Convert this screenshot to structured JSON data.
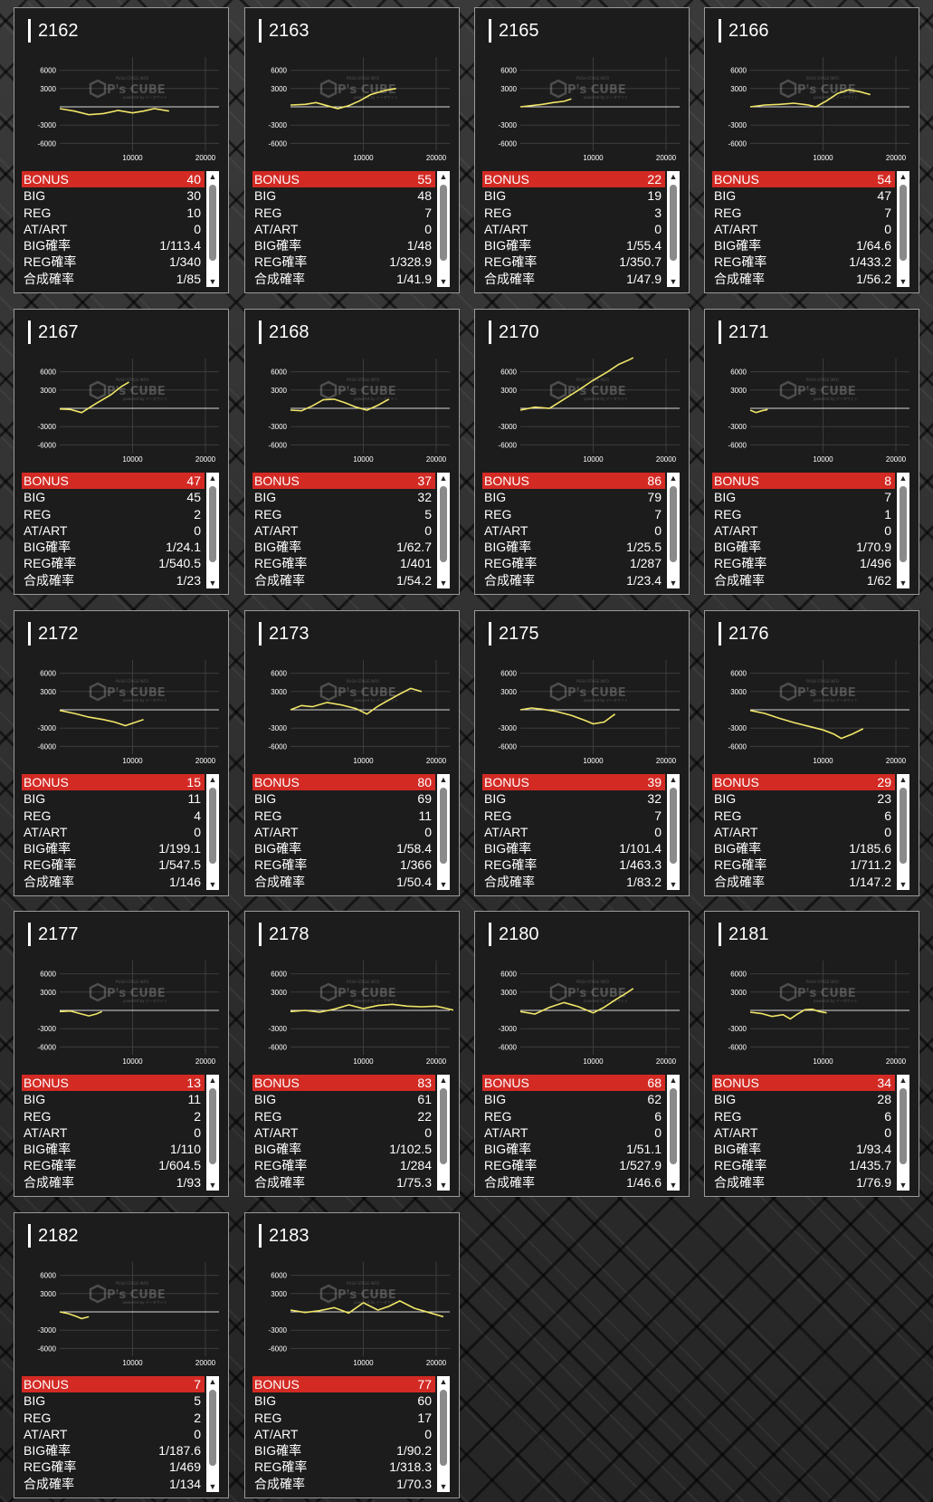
{
  "watermark": {
    "small": "PUSH STAGE INFO",
    "brand": "P's CUBE",
    "sub": "powered by データサイト"
  },
  "axis": {
    "y_ticks": [
      "6000",
      "3000",
      "-3000",
      "-6000"
    ],
    "x_ticks": [
      "10000",
      "20000"
    ]
  },
  "colors": {
    "bonus_bar": "#d32a24",
    "line": "#f0e668",
    "panel": "#1c1c1c"
  },
  "icons": {
    "scroll_up": "▲",
    "scroll_down": "▼"
  },
  "machines": [
    {
      "id": "2162",
      "bonus": "40",
      "big": "30",
      "reg": "10",
      "atart": "0",
      "big_rate": "1/113.4",
      "reg_rate": "1/340",
      "total_rate": "1/85",
      "series": [
        [
          0,
          -300
        ],
        [
          2000,
          -700
        ],
        [
          4000,
          -1300
        ],
        [
          6000,
          -1100
        ],
        [
          8000,
          -600
        ],
        [
          10000,
          -1000
        ],
        [
          11500,
          -700
        ],
        [
          13000,
          -300
        ],
        [
          15000,
          -700
        ]
      ]
    },
    {
      "id": "2163",
      "bonus": "55",
      "big": "48",
      "reg": "7",
      "atart": "0",
      "big_rate": "1/48",
      "reg_rate": "1/328.9",
      "total_rate": "1/41.9",
      "series": [
        [
          0,
          300
        ],
        [
          2000,
          400
        ],
        [
          3500,
          700
        ],
        [
          5000,
          200
        ],
        [
          6500,
          -300
        ],
        [
          8000,
          200
        ],
        [
          9500,
          1000
        ],
        [
          11000,
          2000
        ],
        [
          13000,
          2700
        ],
        [
          14500,
          3000
        ]
      ]
    },
    {
      "id": "2165",
      "bonus": "22",
      "big": "19",
      "reg": "3",
      "atart": "0",
      "big_rate": "1/55.4",
      "reg_rate": "1/350.7",
      "total_rate": "1/47.9",
      "series": [
        [
          0,
          0
        ],
        [
          1500,
          200
        ],
        [
          3000,
          400
        ],
        [
          4500,
          700
        ],
        [
          6000,
          900
        ],
        [
          7000,
          1300
        ]
      ]
    },
    {
      "id": "2166",
      "bonus": "54",
      "big": "47",
      "reg": "7",
      "atart": "0",
      "big_rate": "1/64.6",
      "reg_rate": "1/433.2",
      "total_rate": "1/56.2",
      "series": [
        [
          0,
          0
        ],
        [
          2000,
          300
        ],
        [
          4000,
          400
        ],
        [
          6000,
          600
        ],
        [
          8000,
          300
        ],
        [
          9000,
          0
        ],
        [
          10500,
          1000
        ],
        [
          12000,
          2200
        ],
        [
          13500,
          2800
        ],
        [
          15000,
          2500
        ],
        [
          16500,
          2000
        ]
      ]
    },
    {
      "id": "2167",
      "bonus": "47",
      "big": "45",
      "reg": "2",
      "atart": "0",
      "big_rate": "1/24.1",
      "reg_rate": "1/540.5",
      "total_rate": "1/23",
      "series": [
        [
          0,
          -100
        ],
        [
          1500,
          -200
        ],
        [
          3000,
          -700
        ],
        [
          5000,
          800
        ],
        [
          7000,
          2200
        ],
        [
          8500,
          3600
        ],
        [
          9500,
          4300
        ]
      ]
    },
    {
      "id": "2168",
      "bonus": "37",
      "big": "32",
      "reg": "5",
      "atart": "0",
      "big_rate": "1/62.7",
      "reg_rate": "1/401",
      "total_rate": "1/54.2",
      "series": [
        [
          0,
          -300
        ],
        [
          1500,
          -400
        ],
        [
          3000,
          400
        ],
        [
          4500,
          1400
        ],
        [
          6000,
          1500
        ],
        [
          7500,
          900
        ],
        [
          9000,
          200
        ],
        [
          10500,
          -300
        ],
        [
          12000,
          500
        ],
        [
          13500,
          1500
        ]
      ]
    },
    {
      "id": "2170",
      "bonus": "86",
      "big": "79",
      "reg": "7",
      "atart": "0",
      "big_rate": "1/25.5",
      "reg_rate": "1/287",
      "total_rate": "1/23.4",
      "series": [
        [
          0,
          -300
        ],
        [
          2000,
          200
        ],
        [
          4000,
          0
        ],
        [
          6000,
          1500
        ],
        [
          8000,
          3000
        ],
        [
          10000,
          4600
        ],
        [
          12000,
          6000
        ],
        [
          13500,
          7200
        ],
        [
          15000,
          8000
        ],
        [
          15500,
          8300
        ]
      ]
    },
    {
      "id": "2171",
      "bonus": "8",
      "big": "7",
      "reg": "1",
      "atart": "0",
      "big_rate": "1/70.9",
      "reg_rate": "1/496",
      "total_rate": "1/62",
      "series": [
        [
          0,
          -300
        ],
        [
          800,
          -700
        ],
        [
          1600,
          -400
        ],
        [
          2400,
          -200
        ]
      ]
    },
    {
      "id": "2172",
      "bonus": "15",
      "big": "11",
      "reg": "4",
      "atart": "0",
      "big_rate": "1/199.1",
      "reg_rate": "1/547.5",
      "total_rate": "1/146",
      "series": [
        [
          0,
          -100
        ],
        [
          2000,
          -600
        ],
        [
          4000,
          -1200
        ],
        [
          6000,
          -1600
        ],
        [
          7500,
          -2000
        ],
        [
          9000,
          -2600
        ],
        [
          10500,
          -2000
        ],
        [
          11500,
          -1600
        ]
      ]
    },
    {
      "id": "2173",
      "bonus": "80",
      "big": "69",
      "reg": "11",
      "atart": "0",
      "big_rate": "1/58.4",
      "reg_rate": "1/366",
      "total_rate": "1/50.4",
      "series": [
        [
          0,
          0
        ],
        [
          1500,
          700
        ],
        [
          3000,
          500
        ],
        [
          5000,
          1200
        ],
        [
          7000,
          800
        ],
        [
          9000,
          200
        ],
        [
          10500,
          -700
        ],
        [
          12000,
          600
        ],
        [
          13500,
          1600
        ],
        [
          15000,
          2600
        ],
        [
          16500,
          3500
        ],
        [
          18000,
          3000
        ]
      ]
    },
    {
      "id": "2175",
      "bonus": "39",
      "big": "32",
      "reg": "7",
      "atart": "0",
      "big_rate": "1/101.4",
      "reg_rate": "1/463.3",
      "total_rate": "1/83.2",
      "series": [
        [
          0,
          0
        ],
        [
          1500,
          300
        ],
        [
          3000,
          100
        ],
        [
          5000,
          -300
        ],
        [
          7000,
          -900
        ],
        [
          9000,
          -1800
        ],
        [
          10000,
          -2300
        ],
        [
          11500,
          -2000
        ],
        [
          13000,
          -700
        ]
      ]
    },
    {
      "id": "2176",
      "bonus": "29",
      "big": "23",
      "reg": "6",
      "atart": "0",
      "big_rate": "1/185.6",
      "reg_rate": "1/711.2",
      "total_rate": "1/147.2",
      "series": [
        [
          0,
          -100
        ],
        [
          2000,
          -600
        ],
        [
          4000,
          -1400
        ],
        [
          6000,
          -2100
        ],
        [
          8000,
          -2700
        ],
        [
          10000,
          -3300
        ],
        [
          11500,
          -4000
        ],
        [
          12500,
          -4700
        ],
        [
          14000,
          -4000
        ],
        [
          15500,
          -3100
        ]
      ]
    },
    {
      "id": "2177",
      "bonus": "13",
      "big": "11",
      "reg": "2",
      "atart": "0",
      "big_rate": "1/110",
      "reg_rate": "1/604.5",
      "total_rate": "1/93",
      "series": [
        [
          0,
          -200
        ],
        [
          1500,
          -100
        ],
        [
          3000,
          -600
        ],
        [
          4000,
          -900
        ],
        [
          5000,
          -600
        ],
        [
          5800,
          -200
        ]
      ]
    },
    {
      "id": "2178",
      "bonus": "83",
      "big": "61",
      "reg": "22",
      "atart": "0",
      "big_rate": "1/102.5",
      "reg_rate": "1/284",
      "total_rate": "1/75.3",
      "series": [
        [
          0,
          -200
        ],
        [
          2000,
          0
        ],
        [
          4000,
          -300
        ],
        [
          6000,
          200
        ],
        [
          8000,
          900
        ],
        [
          10000,
          300
        ],
        [
          12000,
          800
        ],
        [
          14000,
          1000
        ],
        [
          16000,
          700
        ],
        [
          18000,
          600
        ],
        [
          20000,
          700
        ],
        [
          21500,
          300
        ],
        [
          23500,
          -300
        ]
      ]
    },
    {
      "id": "2180",
      "bonus": "68",
      "big": "62",
      "reg": "6",
      "atart": "0",
      "big_rate": "1/51.1",
      "reg_rate": "1/527.9",
      "total_rate": "1/46.6",
      "series": [
        [
          0,
          -200
        ],
        [
          2000,
          -600
        ],
        [
          4000,
          500
        ],
        [
          6000,
          1300
        ],
        [
          8000,
          600
        ],
        [
          10000,
          -400
        ],
        [
          11500,
          500
        ],
        [
          13000,
          1700
        ],
        [
          14500,
          2800
        ],
        [
          15500,
          3600
        ]
      ]
    },
    {
      "id": "2181",
      "bonus": "34",
      "big": "28",
      "reg": "6",
      "atart": "0",
      "big_rate": "1/93.4",
      "reg_rate": "1/435.7",
      "total_rate": "1/76.9",
      "series": [
        [
          0,
          -300
        ],
        [
          1500,
          -500
        ],
        [
          3000,
          -1000
        ],
        [
          4500,
          -700
        ],
        [
          5500,
          -1400
        ],
        [
          6500,
          -600
        ],
        [
          7500,
          100
        ],
        [
          8500,
          200
        ],
        [
          9500,
          -200
        ],
        [
          10500,
          -400
        ]
      ]
    },
    {
      "id": "2182",
      "bonus": "7",
      "big": "5",
      "reg": "2",
      "atart": "0",
      "big_rate": "1/187.6",
      "reg_rate": "1/469",
      "total_rate": "1/134",
      "series": [
        [
          0,
          0
        ],
        [
          1200,
          -300
        ],
        [
          2200,
          -700
        ],
        [
          3000,
          -1100
        ],
        [
          4000,
          -800
        ]
      ]
    },
    {
      "id": "2183",
      "bonus": "77",
      "big": "60",
      "reg": "17",
      "atart": "0",
      "big_rate": "1/90.2",
      "reg_rate": "1/318.3",
      "total_rate": "1/70.3",
      "series": [
        [
          0,
          300
        ],
        [
          2000,
          -100
        ],
        [
          4000,
          200
        ],
        [
          6000,
          700
        ],
        [
          8000,
          -200
        ],
        [
          10000,
          1500
        ],
        [
          12000,
          300
        ],
        [
          13500,
          900
        ],
        [
          15000,
          1800
        ],
        [
          17000,
          600
        ],
        [
          19000,
          -100
        ],
        [
          21000,
          -800
        ]
      ]
    }
  ],
  "labels": {
    "bonus": "BONUS",
    "big": "BIG",
    "reg": "REG",
    "atart": "AT/ART",
    "big_rate": "BIG確率",
    "reg_rate": "REG確率",
    "total_rate": "合成確率"
  }
}
